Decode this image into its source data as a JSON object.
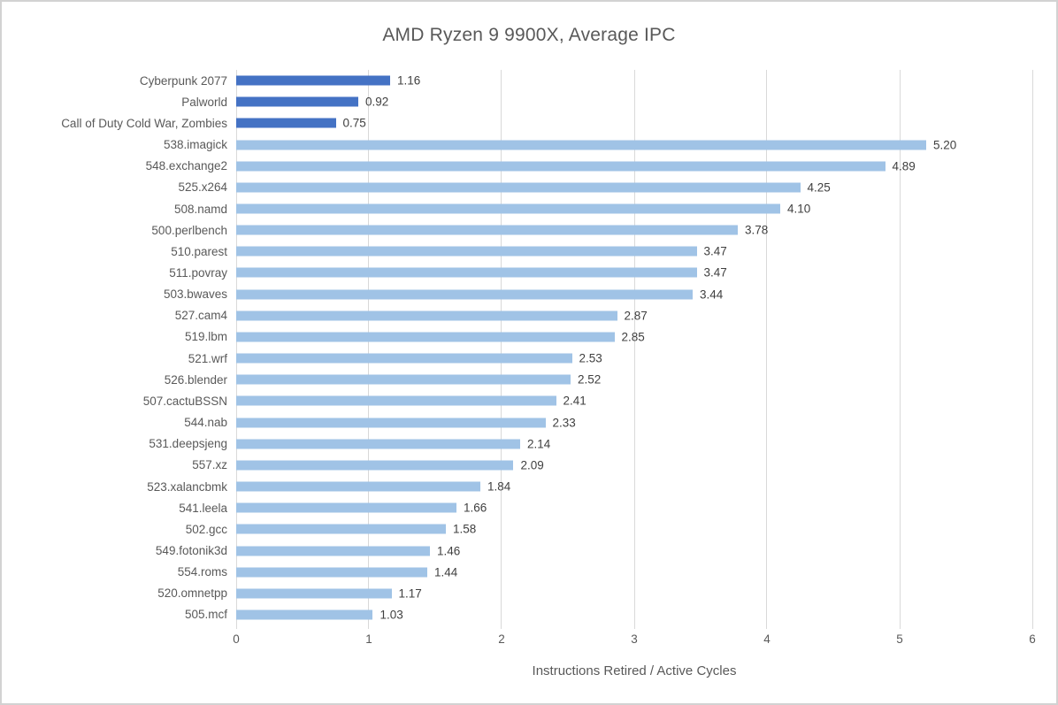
{
  "colors": {
    "game_bar": "#4472c4",
    "spec_bar": "#a0c3e6",
    "gridline": "#d9d9d9",
    "title_text": "#595959",
    "axis_text": "#595959",
    "value_text": "#404040",
    "page_border": "#d2d2d2"
  },
  "chart_data": {
    "type": "bar",
    "orientation": "horizontal",
    "title": "AMD Ryzen 9 9900X, Average IPC",
    "xlabel": "Instructions Retired / Active Cycles",
    "xlim": [
      0,
      6
    ],
    "xticks": [
      "0",
      "1",
      "2",
      "3",
      "4",
      "5",
      "6"
    ],
    "grid": true,
    "legend": "none",
    "bars": [
      {
        "category": "Cyberpunk 2077",
        "value": 1.16,
        "label": "1.16",
        "group": "game"
      },
      {
        "category": "Palworld",
        "value": 0.92,
        "label": "0.92",
        "group": "game"
      },
      {
        "category": "Call of Duty Cold War, Zombies",
        "value": 0.75,
        "label": "0.75",
        "group": "game"
      },
      {
        "category": "538.imagick",
        "value": 5.2,
        "label": "5.20",
        "group": "spec"
      },
      {
        "category": "548.exchange2",
        "value": 4.89,
        "label": "4.89",
        "group": "spec"
      },
      {
        "category": "525.x264",
        "value": 4.25,
        "label": "4.25",
        "group": "spec"
      },
      {
        "category": "508.namd",
        "value": 4.1,
        "label": "4.10",
        "group": "spec"
      },
      {
        "category": "500.perlbench",
        "value": 3.78,
        "label": "3.78",
        "group": "spec"
      },
      {
        "category": "510.parest",
        "value": 3.47,
        "label": "3.47",
        "group": "spec"
      },
      {
        "category": "511.povray",
        "value": 3.47,
        "label": "3.47",
        "group": "spec"
      },
      {
        "category": "503.bwaves",
        "value": 3.44,
        "label": "3.44",
        "group": "spec"
      },
      {
        "category": "527.cam4",
        "value": 2.87,
        "label": "2.87",
        "group": "spec"
      },
      {
        "category": "519.lbm",
        "value": 2.85,
        "label": "2.85",
        "group": "spec"
      },
      {
        "category": "521.wrf",
        "value": 2.53,
        "label": "2.53",
        "group": "spec"
      },
      {
        "category": "526.blender",
        "value": 2.52,
        "label": "2.52",
        "group": "spec"
      },
      {
        "category": "507.cactuBSSN",
        "value": 2.41,
        "label": "2.41",
        "group": "spec"
      },
      {
        "category": "544.nab",
        "value": 2.33,
        "label": "2.33",
        "group": "spec"
      },
      {
        "category": "531.deepsjeng",
        "value": 2.14,
        "label": "2.14",
        "group": "spec"
      },
      {
        "category": "557.xz",
        "value": 2.09,
        "label": "2.09",
        "group": "spec"
      },
      {
        "category": "523.xalancbmk",
        "value": 1.84,
        "label": "1.84",
        "group": "spec"
      },
      {
        "category": "541.leela",
        "value": 1.66,
        "label": "1.66",
        "group": "spec"
      },
      {
        "category": "502.gcc",
        "value": 1.58,
        "label": "1.58",
        "group": "spec"
      },
      {
        "category": "549.fotonik3d",
        "value": 1.46,
        "label": "1.46",
        "group": "spec"
      },
      {
        "category": "554.roms",
        "value": 1.44,
        "label": "1.44",
        "group": "spec"
      },
      {
        "category": "520.omnetpp",
        "value": 1.17,
        "label": "1.17",
        "group": "spec"
      },
      {
        "category": "505.mcf",
        "value": 1.03,
        "label": "1.03",
        "group": "spec"
      }
    ]
  }
}
